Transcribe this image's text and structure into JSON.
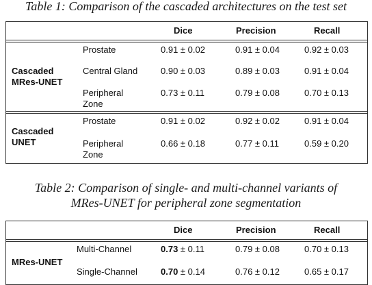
{
  "table1": {
    "caption": "Table 1: Comparison of the cascaded architectures on the test set",
    "headers": [
      "Dice",
      "Precision",
      "Recall"
    ],
    "groups": [
      {
        "name_line1": "Cascaded",
        "name_line2": "MRes-UNET",
        "rows": [
          {
            "label_line1": "Prostate",
            "label_line2": "",
            "dice": "0.91 ± 0.02",
            "precision": "0.91 ± 0.04",
            "recall": "0.92 ± 0.03"
          },
          {
            "label_line1": "Central Gland",
            "label_line2": "",
            "dice": "0.90 ± 0.03",
            "precision": "0.89 ± 0.03",
            "recall": "0.91 ± 0.04"
          },
          {
            "label_line1": "Peripheral",
            "label_line2": "Zone",
            "dice": "0.73 ± 0.11",
            "precision": "0.79 ± 0.08",
            "recall": "0.70 ± 0.13"
          }
        ]
      },
      {
        "name_line1": "Cascaded",
        "name_line2": "UNET",
        "rows": [
          {
            "label_line1": "Prostate",
            "label_line2": "",
            "dice": "0.91 ± 0.02",
            "precision": "0.92 ± 0.02",
            "recall": "0.91 ± 0.04"
          },
          {
            "label_line1": "Peripheral",
            "label_line2": "Zone",
            "dice": "0.66 ± 0.18",
            "precision": "0.77 ± 0.11",
            "recall": "0.59 ± 0.20"
          }
        ]
      }
    ]
  },
  "table2": {
    "caption_line1": "Table 2: Comparison of single- and multi-channel variants of",
    "caption_line2": "MRes-UNET for peripheral zone segmentation",
    "headers": [
      "Dice",
      "Precision",
      "Recall"
    ],
    "group_name": "MRes-UNET",
    "rows": [
      {
        "label": "Multi-Channel",
        "dice_bold": "0.73",
        "dice_rest": " ± 0.11",
        "precision": "0.79 ± 0.08",
        "recall": "0.70 ± 0.13"
      },
      {
        "label": "Single-Channel",
        "dice_bold": "0.70",
        "dice_rest": " ± 0.14",
        "precision": "0.76 ± 0.12",
        "recall": "0.65 ± 0.17"
      }
    ]
  }
}
